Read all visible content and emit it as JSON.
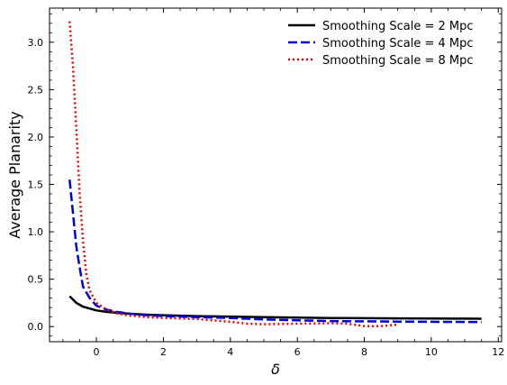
{
  "chart_data": {
    "type": "line",
    "title": "",
    "xlabel": "δ",
    "ylabel": "Average Planarity",
    "xlim": [
      -1.4,
      12.1
    ],
    "ylim": [
      -0.16,
      3.36
    ],
    "xticks": [
      0,
      2,
      4,
      6,
      8,
      10,
      12
    ],
    "yticks": [
      0.0,
      0.5,
      1.0,
      1.5,
      2.0,
      2.5,
      3.0
    ],
    "grid": false,
    "legend_position": "top-right",
    "series": [
      {
        "name": "Smoothing Scale = 2 Mpc",
        "color": "#000000",
        "style": "solid",
        "x": [
          -0.8,
          -0.6,
          -0.4,
          -0.2,
          0.0,
          0.3,
          0.6,
          1.0,
          1.5,
          2.0,
          3.0,
          4.0,
          5.0,
          6.0,
          7.0,
          8.0,
          9.0,
          10.0,
          11.0,
          11.5
        ],
        "y": [
          0.32,
          0.25,
          0.21,
          0.19,
          0.17,
          0.155,
          0.145,
          0.135,
          0.125,
          0.12,
          0.11,
          0.105,
          0.1,
          0.095,
          0.09,
          0.088,
          0.086,
          0.085,
          0.084,
          0.083
        ]
      },
      {
        "name": "Smoothing Scale = 4 Mpc",
        "color": "#0000dd",
        "style": "dashed",
        "x": [
          -0.8,
          -0.6,
          -0.5,
          -0.4,
          -0.2,
          0.0,
          0.3,
          0.6,
          1.0,
          1.5,
          2.0,
          3.0,
          4.0,
          5.0,
          6.0,
          7.0,
          8.0,
          9.0,
          10.0,
          11.0,
          11.5
        ],
        "y": [
          1.55,
          0.85,
          0.62,
          0.42,
          0.3,
          0.22,
          0.18,
          0.155,
          0.135,
          0.12,
          0.11,
          0.1,
          0.09,
          0.075,
          0.065,
          0.058,
          0.055,
          0.052,
          0.05,
          0.048,
          0.047
        ]
      },
      {
        "name": "Smoothing Scale = 8 Mpc",
        "color": "#ee0000",
        "style": "dotted",
        "x": [
          -0.8,
          -0.7,
          -0.6,
          -0.5,
          -0.4,
          -0.3,
          -0.2,
          0.0,
          0.3,
          0.6,
          1.0,
          1.5,
          2.0,
          3.0,
          4.0,
          4.5,
          5.0,
          6.0,
          7.0,
          7.5,
          8.0,
          8.5,
          9.0
        ],
        "y": [
          3.22,
          2.75,
          2.1,
          1.4,
          0.9,
          0.55,
          0.38,
          0.25,
          0.18,
          0.14,
          0.115,
          0.1,
          0.09,
          0.08,
          0.05,
          0.03,
          0.025,
          0.03,
          0.035,
          0.03,
          0.005,
          0.005,
          0.02
        ]
      }
    ]
  }
}
